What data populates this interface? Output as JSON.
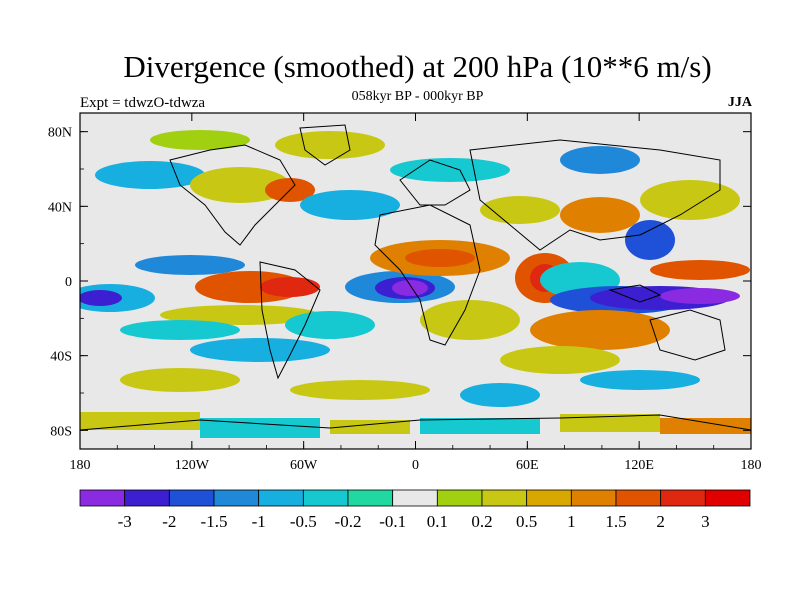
{
  "map": {
    "title": "Divergence (smoothed) at 200 hPa (10**6 m/s)",
    "subtitle": "058kyr BP - 000kyr BP",
    "left_string": "Expt = tdwzO-tdwza",
    "right_string": "JJA",
    "lon_range": [
      -180,
      180
    ],
    "lat_range": [
      -90,
      90
    ],
    "lon_tick_labels": [
      "180",
      "120W",
      "60W",
      "0",
      "60E",
      "120E",
      "180"
    ],
    "lat_tick_labels": [
      "80N",
      "40N",
      "0",
      "40S",
      "80S"
    ],
    "lon_tick_values": [
      -180,
      -120,
      -60,
      0,
      60,
      120,
      180
    ],
    "lat_tick_values": [
      80,
      40,
      0,
      -40,
      -80
    ],
    "missing_color": "#e8e8e8",
    "coastline_color": "#000000"
  },
  "colorbar": {
    "labels": [
      "-3",
      "-2",
      "-1.5",
      "-1",
      "-0.5",
      "-0.2",
      "-0.1",
      "0.1",
      "0.2",
      "0.5",
      "1",
      "1.5",
      "2",
      "3"
    ],
    "colors": [
      "#8a2be2",
      "#3c1fd0",
      "#1e50d8",
      "#1f88d8",
      "#17aee0",
      "#16c8d0",
      "#20d8a0",
      "#e8e8e8",
      "#a0d010",
      "#c8c814",
      "#d8a800",
      "#e08000",
      "#e05400",
      "#e02810",
      "#e00000"
    ]
  }
}
